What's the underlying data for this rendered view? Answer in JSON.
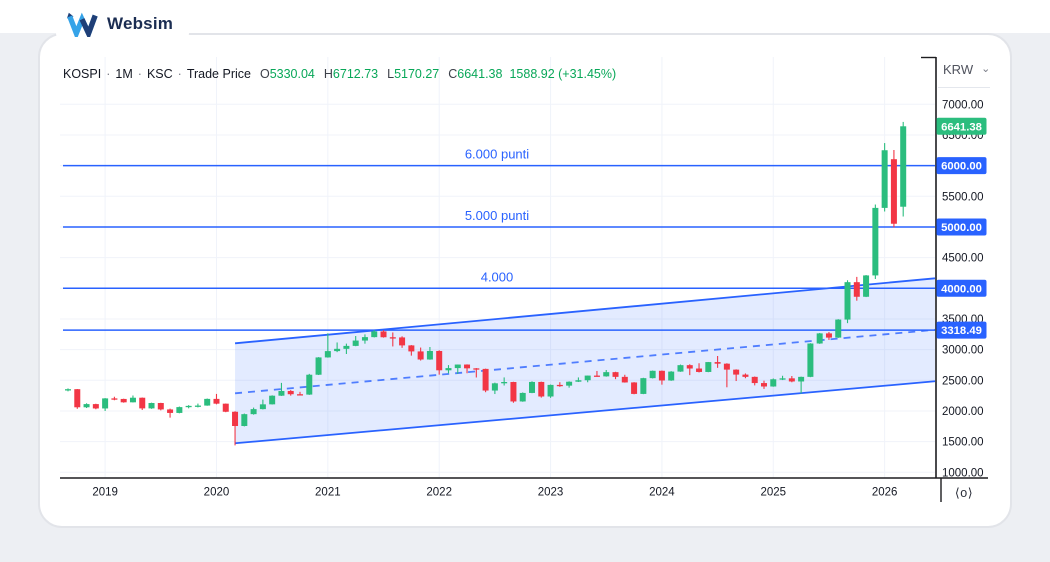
{
  "brand": {
    "name": "Websim"
  },
  "header": {
    "symbol": "KOSPI",
    "separator": "·",
    "interval": "1M",
    "exchange": "KSC",
    "series_type": "Trade Price",
    "ohlc": {
      "o_label": "O",
      "o_value": "5330.04",
      "h_label": "H",
      "h_value": "6712.73",
      "l_label": "L",
      "l_value": "5170.27",
      "c_label": "C",
      "c_value": "6641.38",
      "change": "1588.92 (+31.45%)"
    }
  },
  "price_axis": {
    "currency": "KRW",
    "chevron": "⌄",
    "menu_icon_glyph": "⟨o⟩",
    "badges": [
      {
        "label": "6641.38",
        "price": 6641.38,
        "style": "last"
      },
      {
        "label": "6000.00",
        "price": 6000,
        "style": "level"
      },
      {
        "label": "5000.00",
        "price": 5000,
        "style": "level"
      },
      {
        "label": "4000.00",
        "price": 4000,
        "style": "level"
      },
      {
        "label": "3318.49",
        "price": 3318.49,
        "style": "level"
      }
    ]
  },
  "colors": {
    "up": "#2bbd7e",
    "down": "#f23645",
    "blue": "#2962ff",
    "channel_fill": "rgba(41,98,255,0.13)",
    "grid": "#f0f3fa",
    "axis_line": "#1d1d20",
    "axis_text": "#131722"
  },
  "chart_data": {
    "type": "candlestick",
    "title": "KOSPI · 1M · KSC · Trade Price",
    "symbol": "KOSPI",
    "interval": "1M",
    "last_price": 6641.38,
    "last_change": "+1588.92 (+31.45%)",
    "ylim": [
      1000,
      7200
    ],
    "grid": true,
    "y_axis": {
      "ticks": [
        7000,
        6500,
        6000,
        5500,
        5000,
        4500,
        4000,
        3500,
        3000,
        2500,
        2000,
        1500,
        1000
      ]
    },
    "x_axis": {
      "year_indices": {
        "2019": 4,
        "2020": 16,
        "2021": 28,
        "2022": 40,
        "2023": 52,
        "2024": 64,
        "2025": 76,
        "2026": 88
      }
    },
    "levels": [
      {
        "price": 6000,
        "label": "6.000 punti"
      },
      {
        "price": 5000,
        "label": "5.000 punti"
      },
      {
        "price": 4000,
        "label": "4.000"
      },
      {
        "price": 3318.49,
        "label": ""
      }
    ],
    "channel": {
      "start_index": 18,
      "top_start": 3103,
      "top_end": 4163,
      "bottom_start": 1473,
      "bottom_end": 2484,
      "midline_dashed": true
    },
    "candles": {
      "columns": [
        "month",
        "open",
        "high",
        "low",
        "close"
      ],
      "rows": [
        [
          "2018-09",
          2343,
          2368,
          2320,
          2355
        ],
        [
          "2018-10",
          2355,
          2358,
          2035,
          2060
        ],
        [
          "2018-11",
          2060,
          2125,
          2048,
          2112
        ],
        [
          "2018-12",
          2112,
          2118,
          2028,
          2041
        ],
        [
          "2019-01",
          2041,
          2210,
          2000,
          2205
        ],
        [
          "2019-02",
          2205,
          2232,
          2175,
          2196
        ],
        [
          "2019-03",
          2196,
          2200,
          2135,
          2141
        ],
        [
          "2019-04",
          2141,
          2252,
          2138,
          2216
        ],
        [
          "2019-05",
          2216,
          2220,
          2016,
          2042
        ],
        [
          "2019-06",
          2042,
          2135,
          2035,
          2130
        ],
        [
          "2019-07",
          2130,
          2133,
          2010,
          2025
        ],
        [
          "2019-08",
          2025,
          2038,
          1891,
          1968
        ],
        [
          "2019-09",
          1968,
          2072,
          1962,
          2063
        ],
        [
          "2019-10",
          2063,
          2095,
          2043,
          2083
        ],
        [
          "2019-11",
          2083,
          2120,
          2058,
          2088
        ],
        [
          "2019-12",
          2088,
          2203,
          2085,
          2197
        ],
        [
          "2020-01",
          2197,
          2278,
          2108,
          2119
        ],
        [
          "2020-02",
          2119,
          2122,
          1980,
          1987
        ],
        [
          "2020-03",
          1987,
          1995,
          1439,
          1755
        ],
        [
          "2020-04",
          1755,
          1958,
          1748,
          1948
        ],
        [
          "2020-05",
          1948,
          2055,
          1940,
          2030
        ],
        [
          "2020-06",
          2030,
          2185,
          2025,
          2108
        ],
        [
          "2020-07",
          2108,
          2255,
          2105,
          2249
        ],
        [
          "2020-08",
          2249,
          2458,
          2245,
          2326
        ],
        [
          "2020-09",
          2326,
          2340,
          2250,
          2273
        ],
        [
          "2020-10",
          2273,
          2312,
          2252,
          2267
        ],
        [
          "2020-11",
          2267,
          2605,
          2262,
          2591
        ],
        [
          "2020-12",
          2591,
          2878,
          2586,
          2873
        ],
        [
          "2021-01",
          2873,
          3266,
          2869,
          2976
        ],
        [
          "2021-02",
          2976,
          3117,
          2959,
          3013
        ],
        [
          "2021-03",
          3013,
          3098,
          2929,
          3061
        ],
        [
          "2021-04",
          3061,
          3222,
          3056,
          3148
        ],
        [
          "2021-05",
          3148,
          3249,
          3097,
          3204
        ],
        [
          "2021-06",
          3204,
          3319,
          3199,
          3297
        ],
        [
          "2021-07",
          3297,
          3317,
          3196,
          3202
        ],
        [
          "2021-08",
          3202,
          3280,
          3052,
          3199
        ],
        [
          "2021-09",
          3199,
          3217,
          3029,
          3069
        ],
        [
          "2021-10",
          3069,
          3074,
          2902,
          2971
        ],
        [
          "2021-11",
          2971,
          3034,
          2822,
          2839
        ],
        [
          "2021-12",
          2839,
          3043,
          2835,
          2978
        ],
        [
          "2022-01",
          2978,
          2989,
          2592,
          2663
        ],
        [
          "2022-02",
          2663,
          2748,
          2614,
          2699
        ],
        [
          "2022-03",
          2699,
          2758,
          2605,
          2757
        ],
        [
          "2022-04",
          2757,
          2760,
          2615,
          2695
        ],
        [
          "2022-05",
          2695,
          2700,
          2546,
          2686
        ],
        [
          "2022-06",
          2686,
          2690,
          2306,
          2333
        ],
        [
          "2022-07",
          2333,
          2462,
          2276,
          2451
        ],
        [
          "2022-08",
          2451,
          2547,
          2415,
          2472
        ],
        [
          "2022-09",
          2472,
          2476,
          2134,
          2155
        ],
        [
          "2022-10",
          2155,
          2302,
          2150,
          2294
        ],
        [
          "2022-11",
          2294,
          2484,
          2290,
          2473
        ],
        [
          "2022-12",
          2473,
          2478,
          2218,
          2236
        ],
        [
          "2023-01",
          2236,
          2431,
          2214,
          2425
        ],
        [
          "2023-02",
          2425,
          2469,
          2394,
          2413
        ],
        [
          "2023-03",
          2413,
          2483,
          2380,
          2477
        ],
        [
          "2023-04",
          2477,
          2547,
          2472,
          2501
        ],
        [
          "2023-05",
          2501,
          2578,
          2468,
          2577
        ],
        [
          "2023-06",
          2577,
          2652,
          2560,
          2564
        ],
        [
          "2023-07",
          2564,
          2668,
          2559,
          2633
        ],
        [
          "2023-08",
          2633,
          2639,
          2519,
          2556
        ],
        [
          "2023-09",
          2556,
          2590,
          2462,
          2465
        ],
        [
          "2023-10",
          2465,
          2470,
          2272,
          2278
        ],
        [
          "2023-11",
          2278,
          2541,
          2274,
          2535
        ],
        [
          "2023-12",
          2535,
          2659,
          2530,
          2655
        ],
        [
          "2024-01",
          2655,
          2660,
          2429,
          2497
        ],
        [
          "2024-02",
          2497,
          2649,
          2491,
          2642
        ],
        [
          "2024-03",
          2642,
          2757,
          2638,
          2747
        ],
        [
          "2024-04",
          2747,
          2761,
          2584,
          2692
        ],
        [
          "2024-05",
          2692,
          2778,
          2628,
          2636
        ],
        [
          "2024-06",
          2636,
          2799,
          2632,
          2797
        ],
        [
          "2024-07",
          2797,
          2896,
          2703,
          2771
        ],
        [
          "2024-08",
          2771,
          2778,
          2386,
          2674
        ],
        [
          "2024-09",
          2674,
          2679,
          2488,
          2593
        ],
        [
          "2024-10",
          2593,
          2612,
          2534,
          2556
        ],
        [
          "2024-11",
          2556,
          2562,
          2417,
          2455
        ],
        [
          "2024-12",
          2455,
          2494,
          2360,
          2399
        ],
        [
          "2025-01",
          2399,
          2530,
          2395,
          2517
        ],
        [
          "2025-02",
          2517,
          2574,
          2504,
          2532
        ],
        [
          "2025-03",
          2532,
          2570,
          2468,
          2481
        ],
        [
          "2025-04",
          2481,
          2560,
          2284,
          2556
        ],
        [
          "2025-05",
          2556,
          3105,
          2551,
          3100
        ],
        [
          "2025-06",
          3100,
          3272,
          3094,
          3265
        ],
        [
          "2025-07",
          3265,
          3288,
          3158,
          3196
        ],
        [
          "2025-08",
          3196,
          3497,
          3192,
          3490
        ],
        [
          "2025-09",
          3490,
          4131,
          3432,
          4100
        ],
        [
          "2025-10",
          4100,
          4186,
          3798,
          3862
        ],
        [
          "2025-11",
          3862,
          4216,
          3857,
          4210
        ],
        [
          "2025-12",
          4210,
          5366,
          4152,
          5311
        ],
        [
          "2026-01",
          5311,
          6368,
          5252,
          6251
        ],
        [
          "2026-02",
          6105,
          6255,
          4992,
          5052.46
        ],
        [
          "2026-03",
          5330.04,
          6712.73,
          5170.27,
          6641.38
        ]
      ]
    }
  }
}
